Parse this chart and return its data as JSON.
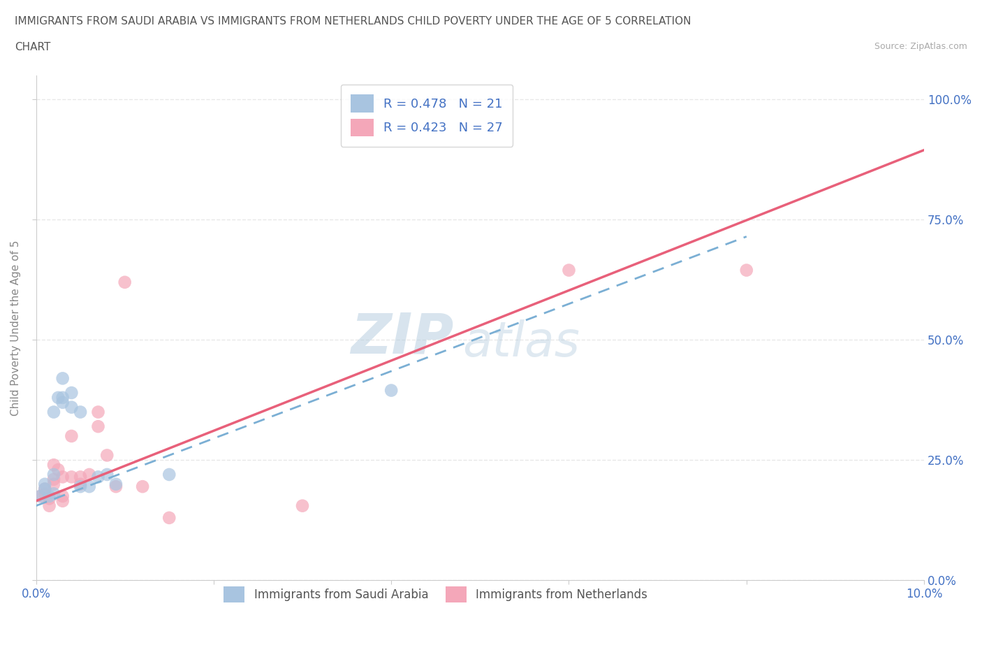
{
  "title_line1": "IMMIGRANTS FROM SAUDI ARABIA VS IMMIGRANTS FROM NETHERLANDS CHILD POVERTY UNDER THE AGE OF 5 CORRELATION",
  "title_line2": "CHART",
  "source": "Source: ZipAtlas.com",
  "ylabel": "Child Poverty Under the Age of 5",
  "xmin": 0.0,
  "xmax": 0.1,
  "ymin": 0.0,
  "ymax": 1.05,
  "yticks": [
    0.0,
    0.25,
    0.5,
    0.75,
    1.0
  ],
  "ytick_labels": [
    "0.0%",
    "25.0%",
    "50.0%",
    "75.0%",
    "100.0%"
  ],
  "xticks": [
    0.0,
    0.02,
    0.04,
    0.06,
    0.08,
    0.1
  ],
  "xtick_labels": [
    "0.0%",
    "",
    "",
    "",
    "",
    "10.0%"
  ],
  "saudi_color": "#a8c4e0",
  "saudi_line_color": "#7bafd4",
  "netherlands_color": "#f4a7b9",
  "netherlands_line_color": "#e8607a",
  "saudi_R": 0.478,
  "saudi_N": 21,
  "netherlands_R": 0.423,
  "netherlands_N": 27,
  "saudi_scatter_x": [
    0.0005,
    0.001,
    0.001,
    0.0015,
    0.002,
    0.002,
    0.002,
    0.0025,
    0.003,
    0.003,
    0.003,
    0.004,
    0.004,
    0.005,
    0.005,
    0.006,
    0.007,
    0.008,
    0.009,
    0.015,
    0.04
  ],
  "saudi_scatter_y": [
    0.175,
    0.19,
    0.2,
    0.175,
    0.18,
    0.22,
    0.35,
    0.38,
    0.37,
    0.38,
    0.42,
    0.36,
    0.39,
    0.35,
    0.195,
    0.195,
    0.215,
    0.22,
    0.2,
    0.22,
    0.395
  ],
  "neth_scatter_x": [
    0.0005,
    0.001,
    0.001,
    0.0015,
    0.0015,
    0.002,
    0.002,
    0.002,
    0.0025,
    0.003,
    0.003,
    0.003,
    0.004,
    0.004,
    0.005,
    0.005,
    0.006,
    0.007,
    0.007,
    0.008,
    0.009,
    0.01,
    0.012,
    0.015,
    0.03,
    0.06,
    0.08
  ],
  "neth_scatter_y": [
    0.175,
    0.18,
    0.19,
    0.155,
    0.17,
    0.2,
    0.21,
    0.24,
    0.23,
    0.165,
    0.175,
    0.215,
    0.215,
    0.3,
    0.2,
    0.215,
    0.22,
    0.35,
    0.32,
    0.26,
    0.195,
    0.62,
    0.195,
    0.13,
    0.155,
    0.645,
    0.645
  ],
  "saudi_line_x": [
    0.0,
    0.08
  ],
  "saudi_line_y": [
    0.155,
    0.715
  ],
  "neth_line_x": [
    0.0,
    0.1
  ],
  "neth_line_y": [
    0.165,
    0.895
  ],
  "watermark_zip": "ZIP",
  "watermark_atlas": "atlas",
  "background_color": "#ffffff",
  "grid_color": "#e8e8e8",
  "title_color": "#555555",
  "axis_label_color": "#4472c4",
  "legend_text_color": "#4472c4"
}
